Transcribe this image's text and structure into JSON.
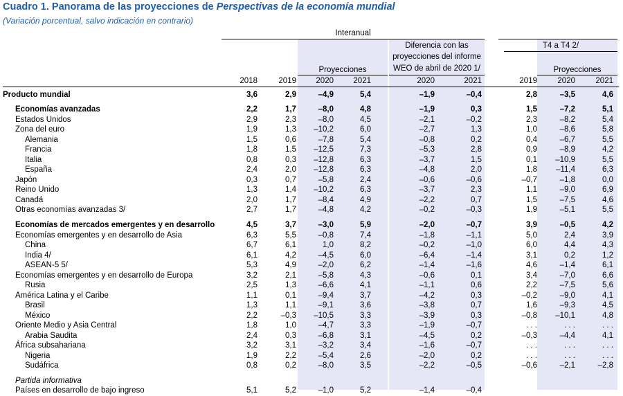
{
  "title_prefix": "Cuadro 1. Panorama de las proyecciones de ",
  "title_italic": "Perspectivas de la economía mundial",
  "subtitle": "(Variación porcentual, salvo indicación en contrario)",
  "header": {
    "interanual": "Interanual",
    "proyecciones": "Proyecciones",
    "diferencia_l1": "Diferencia con las",
    "diferencia_l2": "proyecciones del informe",
    "diferencia_l3": "WEO de abril de 2020 1/",
    "t4": "T4 a T4 2/",
    "proyecciones_t4": "Proyecciones",
    "years": [
      "2018",
      "2019",
      "2020",
      "2021",
      "2020",
      "2021",
      "2019",
      "2020",
      "2021"
    ]
  },
  "rows": [
    {
      "label": "Producto mundial",
      "indent": 0,
      "style": "b",
      "values": [
        "3,6",
        "2,9",
        "–4,9",
        "5,4",
        "–1,9",
        "–0,4",
        "2,8",
        "–3,5",
        "4,6"
      ]
    },
    {
      "label": "Economías avanzadas",
      "indent": 1,
      "style": "b",
      "values": [
        "2,2",
        "1,7",
        "–8,0",
        "4,8",
        "–1,9",
        "0,3",
        "1,5",
        "–7,2",
        "5,1"
      ]
    },
    {
      "label": "Estados Unidos",
      "indent": 1,
      "style": "",
      "values": [
        "2,9",
        "2,3",
        "–8,0",
        "4,5",
        "–2,1",
        "–0,2",
        "2,3",
        "–8,2",
        "5,4"
      ]
    },
    {
      "label": "Zona del euro",
      "indent": 1,
      "style": "",
      "values": [
        "1,9",
        "1,3",
        "–10,2",
        "6,0",
        "–2,7",
        "1,3",
        "1,0",
        "–8,6",
        "5,8"
      ]
    },
    {
      "label": "Alemania",
      "indent": 2,
      "style": "",
      "values": [
        "1,5",
        "0,6",
        "–7,8",
        "5,4",
        "–0,8",
        "0,2",
        "0,4",
        "–6,7",
        "5,5"
      ]
    },
    {
      "label": "Francia",
      "indent": 2,
      "style": "",
      "values": [
        "1,8",
        "1,5",
        "–12,5",
        "7,3",
        "–5,3",
        "2,8",
        "0,9",
        "–8,9",
        "4,2"
      ]
    },
    {
      "label": "Italia",
      "indent": 2,
      "style": "",
      "values": [
        "0,8",
        "0,3",
        "–12,8",
        "6,3",
        "–3,7",
        "1,5",
        "0,1",
        "–10,9",
        "5,5"
      ]
    },
    {
      "label": "España",
      "indent": 2,
      "style": "",
      "values": [
        "2,4",
        "2,0",
        "–12,8",
        "6,3",
        "–4,8",
        "2,0",
        "1,8",
        "–11,4",
        "6,3"
      ]
    },
    {
      "label": "Japón",
      "indent": 1,
      "style": "",
      "values": [
        "0,3",
        "0,7",
        "–5,8",
        "2,4",
        "–0,6",
        "–0,6",
        "–0,7",
        "–1,8",
        "0,0"
      ]
    },
    {
      "label": "Reino Unido",
      "indent": 1,
      "style": "",
      "values": [
        "1,3",
        "1,4",
        "–10,2",
        "6,3",
        "–3,7",
        "2,3",
        "1,1",
        "–9,0",
        "6,9"
      ]
    },
    {
      "label": "Canadá",
      "indent": 1,
      "style": "",
      "values": [
        "2,0",
        "1,7",
        "–8,4",
        "4,9",
        "–2,2",
        "0,7",
        "1,5",
        "–7,5",
        "4,6"
      ]
    },
    {
      "label": "Otras economías avanzadas 3/",
      "indent": 1,
      "style": "",
      "values": [
        "2,7",
        "1,7",
        "–4,8",
        "4,2",
        "–0,2",
        "–0,3",
        "1,9",
        "–5,1",
        "5,5"
      ]
    },
    {
      "label": "Economías de mercados emergentes y en desarrollo",
      "indent": 1,
      "style": "b",
      "values": [
        "4,5",
        "3,7",
        "–3,0",
        "5,9",
        "–2,0",
        "–0,7",
        "3,9",
        "–0,5",
        "4,2"
      ]
    },
    {
      "label": "Economías emergentes y en desarrollo de Asia",
      "indent": 1,
      "style": "",
      "values": [
        "6,3",
        "5,5",
        "–0,8",
        "7,4",
        "–1,8",
        "–1,1",
        "5,0",
        "2,4",
        "3,9"
      ]
    },
    {
      "label": "China",
      "indent": 2,
      "style": "",
      "values": [
        "6,7",
        "6,1",
        "1,0",
        "8,2",
        "–0,2",
        "–1,0",
        "6,0",
        "4,4",
        "4,3"
      ]
    },
    {
      "label": "India 4/",
      "indent": 2,
      "style": "",
      "values": [
        "6,1",
        "4,2",
        "–4,5",
        "6,0",
        "–6,4",
        "–1,4",
        "3,1",
        "0,2",
        "1,2"
      ]
    },
    {
      "label": "ASEAN-5 5/",
      "indent": 2,
      "style": "",
      "values": [
        "5,3",
        "4,9",
        "–2,0",
        "6,2",
        "–1,4",
        "–1,6",
        "4,6",
        "–1,4",
        "6,1"
      ]
    },
    {
      "label": "Economías emergentes y en desarrollo de Europa",
      "indent": 1,
      "style": "",
      "values": [
        "3,2",
        "2,1",
        "–5,8",
        "4,3",
        "–0,6",
        "0,1",
        "3,4",
        "–7,0",
        "6,6"
      ]
    },
    {
      "label": "Rusia",
      "indent": 2,
      "style": "",
      "values": [
        "2,5",
        "1,3",
        "–6,6",
        "4,1",
        "–1,1",
        "0,6",
        "2,2",
        "–7,5",
        "5,6"
      ]
    },
    {
      "label": "América Latina y el Caribe",
      "indent": 1,
      "style": "",
      "values": [
        "1,1",
        "0,1",
        "–9,4",
        "3,7",
        "–4,2",
        "0,3",
        "–0,2",
        "–9,0",
        "4,1"
      ]
    },
    {
      "label": "Brasil",
      "indent": 2,
      "style": "",
      "values": [
        "1,3",
        "1,1",
        "–9,1",
        "3,6",
        "–3,8",
        "0,7",
        "1,6",
        "–9,3",
        "4,5"
      ]
    },
    {
      "label": "México",
      "indent": 2,
      "style": "",
      "values": [
        "2,2",
        "–0,3",
        "–10,5",
        "3,3",
        "–3,9",
        "0,3",
        "–0,8",
        "–10,1",
        "4,8"
      ]
    },
    {
      "label": "Oriente Medio y Asia Central",
      "indent": 1,
      "style": "",
      "values": [
        "1,8",
        "1,0",
        "–4,7",
        "3,3",
        "–1,9",
        "–0,7",
        ". . .",
        ". . .",
        ". . ."
      ]
    },
    {
      "label": "Arabia Saudita",
      "indent": 2,
      "style": "",
      "values": [
        "2,4",
        "0,3",
        "–6,8",
        "3,1",
        "–4,5",
        "0,2",
        "–0,3",
        "–4,4",
        "4,1"
      ]
    },
    {
      "label": "África subsahariana",
      "indent": 1,
      "style": "",
      "values": [
        "3,2",
        "3,1",
        "–3,2",
        "3,4",
        "–1,6",
        "–0,7",
        ". . .",
        ". . .",
        ". . ."
      ]
    },
    {
      "label": "Nigeria",
      "indent": 2,
      "style": "",
      "values": [
        "1,9",
        "2,2",
        "–5,4",
        "2,6",
        "–2,0",
        "0,2",
        ". . .",
        ". . .",
        ". . ."
      ]
    },
    {
      "label": "Sudáfrica",
      "indent": 2,
      "style": "",
      "values": [
        "0,8",
        "0,2",
        "–8,0",
        "3,5",
        "–2,2",
        "–0,5",
        "–0,6",
        "–2,1",
        "–2,8"
      ]
    },
    {
      "label": "Partida informativa",
      "indent": 1,
      "style": "it",
      "values": [
        "",
        "",
        "",
        "",
        "",
        "",
        "",
        "",
        ""
      ]
    },
    {
      "label": "Países en desarrollo de bajo ingreso",
      "indent": 1,
      "style": "",
      "values": [
        "5,1",
        "5,2",
        "–1,0",
        "5,2",
        "–1,4",
        "–0,4",
        "",
        "",
        ""
      ]
    }
  ]
}
